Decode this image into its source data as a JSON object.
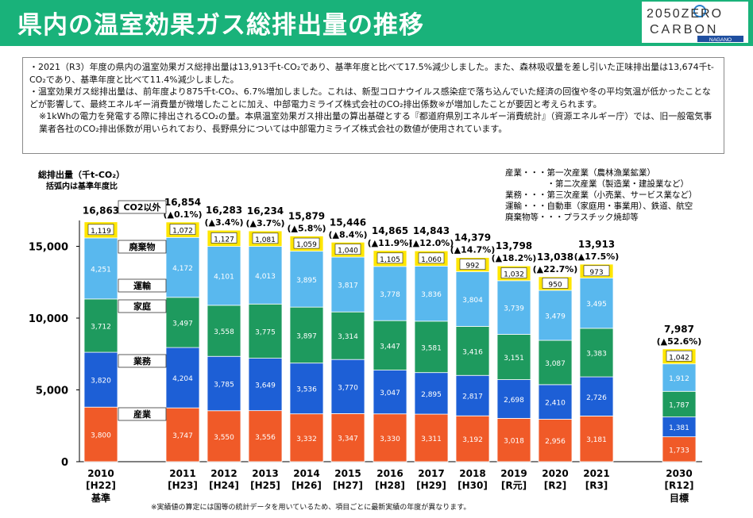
{
  "header": {
    "title": "県内の温室効果ガス総排出量の推移",
    "logo_line1": "2050ZERO",
    "logo_line2": "CARBON",
    "logo_line3": "NAGANO"
  },
  "notes": [
    "・2021（R3）年度の県内の温室効果ガス総排出量は13,913千t-CO₂であり、基準年度と比べて17.5%減少しました。また、森林吸収量を差し引いた正味排出量は13,674千t-CO₂であり、基準年度と比べて11.4%減少しました。",
    "・温室効果ガス総排出量は、前年度より875千t-CO₂、6.7%増加しました。これは、新型コロナウイルス感染症で落ち込んでいた経済の回復や冬の平均気温が低かったことなどが影響して、最終エネルギー消費量が微増したことに加え、中部電力ミライズ株式会社のCO₂排出係数※が増加したことが要因と考えられます。",
    "※1kWhの電力を発電する際に排出されるCO₂の量。本県温室効果ガス排出量の算出基礎とする『都道府県別エネルギー消費統計』（資源エネルギー庁）では、旧一般電気事業者各社のCO₂排出係数が用いられており、長野県分については中部電力ミライズ株式会社の数値が使用されています。"
  ],
  "footnote": "※実績値の算定には国等の統計データを用いているため、項目ごとに最新実績の年度が異なります。",
  "chart_data": {
    "type": "bar",
    "stacked": true,
    "ylabel": "総排出量（千t-CO₂）",
    "ylabel_sub": "括弧内は基準年度比",
    "ylim": [
      0,
      17000
    ],
    "yticks": [
      "0",
      "5,000",
      "10,000",
      "15,000"
    ],
    "yticks_values": [
      0,
      5000,
      10000,
      15000
    ],
    "categories": [
      {
        "year": "2010",
        "era": "[H22]",
        "note": "基準",
        "total": "16,863",
        "change": ""
      },
      {
        "year": "2011",
        "era": "[H23]",
        "note": "",
        "total": "16,854",
        "change": "(▲0.1%)"
      },
      {
        "year": "2012",
        "era": "[H24]",
        "note": "",
        "total": "16,283",
        "change": "(▲3.4%)"
      },
      {
        "year": "2013",
        "era": "[H25]",
        "note": "",
        "total": "16,234",
        "change": "(▲3.7%)"
      },
      {
        "year": "2014",
        "era": "[H26]",
        "note": "",
        "total": "15,879",
        "change": "(▲5.8%)"
      },
      {
        "year": "2015",
        "era": "[H27]",
        "note": "",
        "total": "15,446",
        "change": "(▲8.4%)"
      },
      {
        "year": "2016",
        "era": "[H28]",
        "note": "",
        "total": "14,865",
        "change": "(▲11.9%)"
      },
      {
        "year": "2017",
        "era": "[H29]",
        "note": "",
        "total": "14,843",
        "change": "(▲12.0%)"
      },
      {
        "year": "2018",
        "era": "[H30]",
        "note": "",
        "total": "14,379",
        "change": "(▲14.7%)"
      },
      {
        "year": "2019",
        "era": "[R元]",
        "note": "",
        "total": "13,798",
        "change": "(▲18.2%)"
      },
      {
        "year": "2020",
        "era": "[R2]",
        "note": "",
        "total": "13,038",
        "change": "(▲22.7%)"
      },
      {
        "year": "2021",
        "era": "[R3]",
        "note": "",
        "total": "13,913",
        "change": "(▲17.5%)"
      },
      {
        "year": "2030",
        "era": "[R12]",
        "note": "目標",
        "total": "7,987",
        "change": "(▲52.6%)"
      }
    ],
    "series": [
      {
        "name": "産業",
        "color": "#f05a28",
        "values": [
          3800,
          3747,
          3550,
          3556,
          3332,
          3347,
          3330,
          3311,
          3192,
          3018,
          2956,
          3181,
          1733
        ]
      },
      {
        "name": "業務",
        "color": "#1d5fd6",
        "values": [
          3820,
          4204,
          3785,
          3649,
          3536,
          3770,
          3047,
          2895,
          2817,
          2698,
          2410,
          2726,
          1381
        ]
      },
      {
        "name": "家庭",
        "color": "#1e9a5e",
        "values": [
          3712,
          3497,
          3558,
          3775,
          3897,
          3314,
          3447,
          3581,
          3416,
          3151,
          3087,
          3383,
          1787
        ]
      },
      {
        "name": "運輸",
        "color": "#59b8ee",
        "values": [
          4251,
          4172,
          4101,
          4013,
          3895,
          3817,
          3778,
          3836,
          3804,
          3739,
          3479,
          3495,
          1912
        ]
      },
      {
        "name": "CO2以外",
        "color": "#ffe600",
        "values": [
          1119,
          1072,
          1127,
          1081,
          1059,
          1040,
          1105,
          1060,
          992,
          1032,
          950,
          973,
          1042
        ]
      }
    ],
    "category_labels": [
      "CO2以外",
      "廃棄物",
      "運輸",
      "家庭",
      "業務",
      "産業"
    ],
    "legend_notes": [
      "産業・・・第一次産業（農林漁業鉱業）",
      "　　　　　・第二次産業（製造業・建設業など）",
      "業務・・・第三次産業（小売業、サービス業など）",
      "運輸・・・自動車（家庭用・事業用）、鉄道、航空",
      "廃棄物等・・・プラスチック焼却等"
    ],
    "grid": false
  }
}
